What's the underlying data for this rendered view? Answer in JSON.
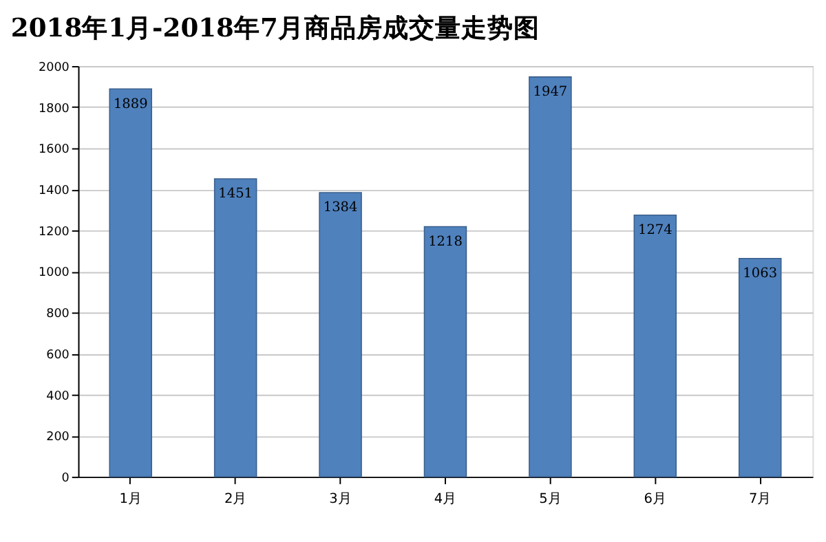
{
  "chart_data": {
    "type": "bar",
    "title": "2018年1月-2018年7月商品房成交量走势图",
    "categories": [
      "1月",
      "2月",
      "3月",
      "4月",
      "5月",
      "6月",
      "7月"
    ],
    "values": [
      1889,
      1451,
      1384,
      1218,
      1947,
      1274,
      1063
    ],
    "color": "#4f81bd",
    "ylim": [
      0,
      2000
    ],
    "yticks": [
      0,
      200,
      400,
      600,
      800,
      1000,
      1200,
      1400,
      1600,
      1800,
      2000
    ],
    "grid": "y",
    "data_labels": true
  }
}
